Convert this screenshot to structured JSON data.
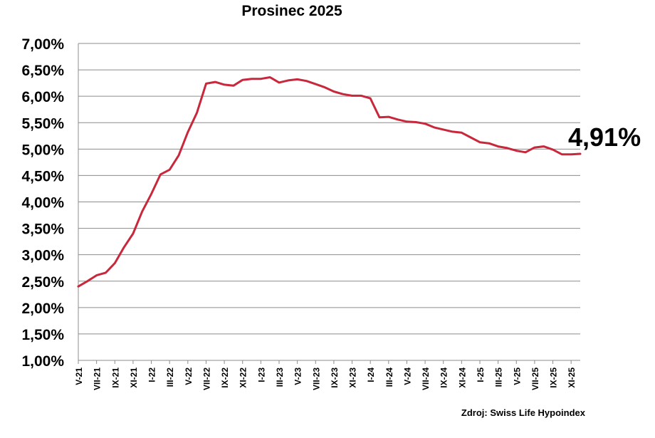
{
  "chart_data": {
    "type": "line",
    "title": "Prosinec 2025",
    "source": "Zdroj: Swiss Life Hypoindex",
    "last_value_label": "4,91%",
    "ylim": [
      1.0,
      7.0
    ],
    "y_ticks": [
      1.0,
      1.5,
      2.0,
      2.5,
      3.0,
      3.5,
      4.0,
      4.5,
      5.0,
      5.5,
      6.0,
      6.5,
      7.0
    ],
    "y_tick_labels": [
      "1,00%",
      "1,50%",
      "2,00%",
      "2,50%",
      "3,00%",
      "3,50%",
      "4,00%",
      "4,50%",
      "5,00%",
      "5,50%",
      "6,00%",
      "6,50%",
      "7,00%"
    ],
    "x_tick_labels": [
      "V-21",
      "VII-21",
      "IX-21",
      "XI-21",
      "I-22",
      "III-22",
      "V-22",
      "VII-22",
      "IX-22",
      "XI-22",
      "I-23",
      "III-23",
      "V-23",
      "VII-23",
      "IX-23",
      "XI-23",
      "I-24",
      "III-24",
      "V-24",
      "VII-24",
      "IX-24",
      "XI-24",
      "I-25",
      "III-25",
      "V-25",
      "VII-25",
      "IX-25",
      "XI-25"
    ],
    "grid": true,
    "line_color": "#c8283c",
    "series": [
      {
        "values": [
          2.4,
          2.5,
          2.61,
          2.66,
          2.84,
          3.14,
          3.4,
          3.82,
          4.15,
          4.52,
          4.61,
          4.88,
          5.32,
          5.69,
          6.24,
          6.27,
          6.22,
          6.2,
          6.31,
          6.33,
          6.33,
          6.36,
          6.26,
          6.3,
          6.32,
          6.29,
          6.23,
          6.17,
          6.09,
          6.04,
          6.01,
          6.01,
          5.96,
          5.6,
          5.61,
          5.56,
          5.52,
          5.51,
          5.48,
          5.41,
          5.37,
          5.33,
          5.31,
          5.22,
          5.13,
          5.11,
          5.05,
          5.02,
          4.97,
          4.94,
          5.03,
          5.05,
          4.99,
          4.9,
          4.9,
          4.91
        ]
      }
    ]
  }
}
